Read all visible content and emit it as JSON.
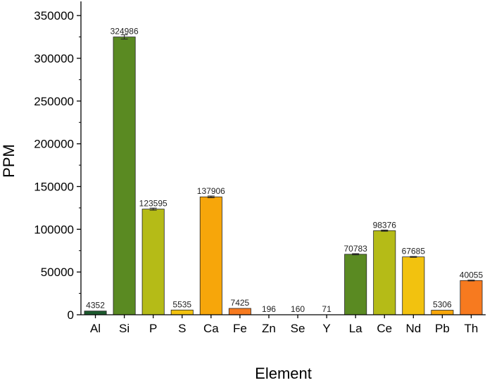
{
  "chart_data": {
    "type": "bar",
    "xlabel": "Element",
    "ylabel": "PPM",
    "ylim": [
      0,
      360000
    ],
    "yticks": [
      0,
      50000,
      100000,
      150000,
      200000,
      250000,
      300000,
      350000
    ],
    "ytick_labels": [
      "0",
      "50000",
      "100000",
      "150000",
      "200000",
      "250000",
      "300000",
      "350000"
    ],
    "categories": [
      "Al",
      "Si",
      "P",
      "S",
      "Ca",
      "Fe",
      "Zn",
      "Se",
      "Y",
      "La",
      "Ce",
      "Nd",
      "Pb",
      "Th"
    ],
    "values": [
      4352,
      324986,
      123595,
      5535,
      137906,
      7425,
      196,
      160,
      71,
      70783,
      98376,
      67685,
      5306,
      40055
    ],
    "value_labels": [
      "4352",
      "324986",
      "123595",
      "5535",
      "137906",
      "7425",
      "196",
      "160",
      "71",
      "70783",
      "98376",
      "67685",
      "5306",
      "40055"
    ],
    "errors": [
      0,
      2500,
      1200,
      0,
      1000,
      0,
      0,
      0,
      0,
      700,
      700,
      500,
      0,
      500
    ],
    "colors": [
      "#1d5a2e",
      "#5a8a22",
      "#b5bb17",
      "#f2c20f",
      "#f7a60a",
      "#f77a1f",
      "#888888",
      "#888888",
      "#888888",
      "#5a8a22",
      "#b5bb17",
      "#f2c20f",
      "#f7a60a",
      "#f77a1f"
    ],
    "grid": false,
    "legend": "none"
  }
}
